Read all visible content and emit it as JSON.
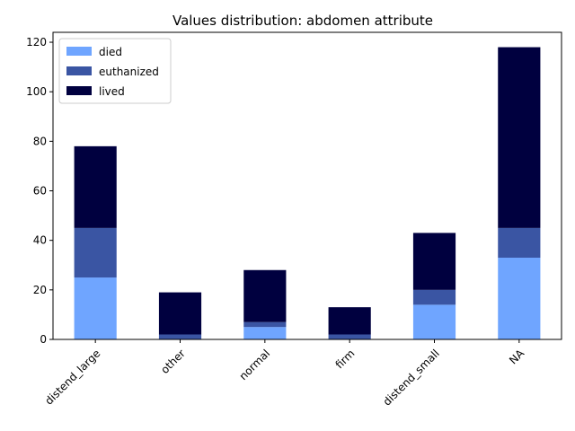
{
  "chart_data": {
    "type": "bar",
    "stacked": true,
    "title": "Values distribution: abdomen attribute",
    "xlabel": "",
    "ylabel": "",
    "categories": [
      "distend_large",
      "other",
      "normal",
      "firm",
      "distend_small",
      "NA"
    ],
    "series": [
      {
        "name": "died",
        "color": "#6fa5ff",
        "values": [
          25,
          0,
          5,
          0,
          14,
          33
        ]
      },
      {
        "name": "euthanized",
        "color": "#3a55a3",
        "values": [
          20,
          2,
          2,
          2,
          6,
          12
        ]
      },
      {
        "name": "lived",
        "color": "#00003f",
        "values": [
          33,
          17,
          21,
          11,
          23,
          73
        ]
      }
    ],
    "ylim": [
      0,
      124
    ],
    "yticks": [
      0,
      20,
      40,
      60,
      80,
      100,
      120
    ],
    "xtick_rotation_deg": 45,
    "grid": false,
    "legend_position": "upper-left"
  }
}
